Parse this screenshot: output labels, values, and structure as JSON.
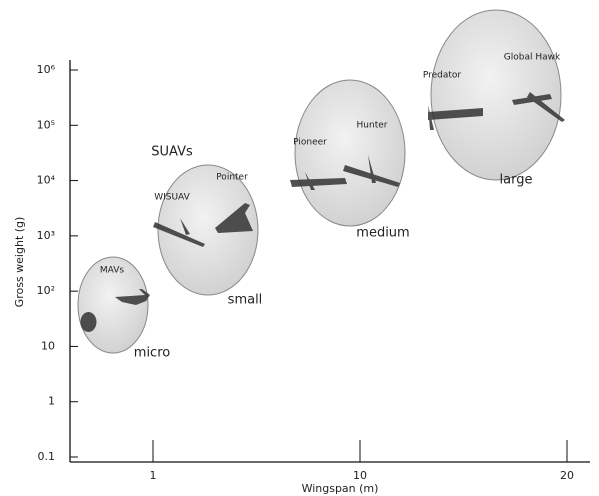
{
  "chart_data": {
    "type": "annotated-log",
    "y_label": "Gross weight (g)",
    "x_label": "Wingspan (m)",
    "y_scale": "log",
    "ylim": [
      0.1,
      1000000
    ],
    "yticks": [
      {
        "value": 0.1,
        "label": "0.1"
      },
      1,
      10,
      {
        "value": 100,
        "label": "10²"
      },
      {
        "value": 1000,
        "label": "10³"
      },
      {
        "value": 10000,
        "label": "10⁴"
      },
      {
        "value": 100000,
        "label": "10⁵"
      },
      {
        "value": 1000000,
        "label": "10⁶"
      }
    ],
    "xticks": [
      1,
      10,
      20
    ],
    "annotations": [
      "MAVs",
      "micro",
      "SUAVs",
      "WISUAV",
      "Pointer",
      "small",
      "Pioneer",
      "Hunter",
      "medium",
      "Predator",
      "Global Hawk",
      "large"
    ]
  }
}
